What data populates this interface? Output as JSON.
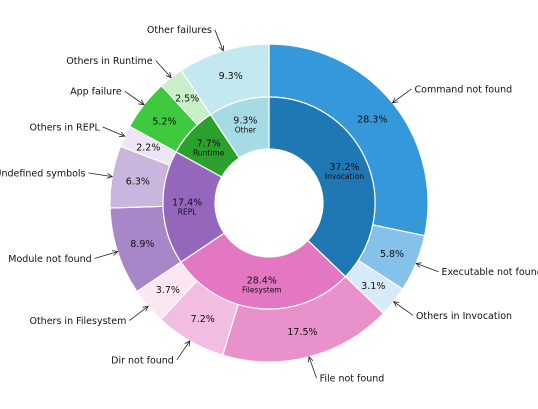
{
  "chart_data": {
    "type": "pie",
    "style": "nested donut",
    "start_angle_deg": 90,
    "direction": "clockwise",
    "inner_ring": {
      "categories": [
        "Invocation",
        "Filesystem",
        "REPL",
        "Runtime",
        "Other"
      ],
      "values": [
        37.2,
        28.4,
        17.4,
        7.7,
        9.3
      ],
      "value_labels": [
        "37.2%",
        "28.4%",
        "17.4%",
        "7.7%",
        "9.3%"
      ],
      "colors": [
        "#1f77b4",
        "#e377c2",
        "#9467bd",
        "#2ca02c",
        "#a6dbe6"
      ]
    },
    "outer_ring": {
      "categories": [
        "Command not found",
        "Executable not found",
        "Others in Invocation",
        "File not found",
        "Dir not found",
        "Others in Filesystem",
        "Module not found",
        "Undefined symbols",
        "Others in REPL",
        "App failure",
        "Others in Runtime",
        "Other failures"
      ],
      "values": [
        28.3,
        5.8,
        3.1,
        17.5,
        7.2,
        3.7,
        8.9,
        6.3,
        2.2,
        5.2,
        2.5,
        9.3
      ],
      "value_labels": [
        "28.3%",
        "5.8%",
        "3.1%",
        "17.5%",
        "7.2%",
        "3.7%",
        "8.9%",
        "6.3%",
        "2.2%",
        "5.2%",
        "2.5%",
        "9.3%"
      ],
      "colors": [
        "#3498db",
        "#85c1e9",
        "#d6eaf8",
        "#e991cb",
        "#f2bde0",
        "#fbe6f2",
        "#a887c8",
        "#c9b5de",
        "#ede4f4",
        "#3ec93e",
        "#c8f0c8",
        "#c4e8ef"
      ]
    }
  }
}
